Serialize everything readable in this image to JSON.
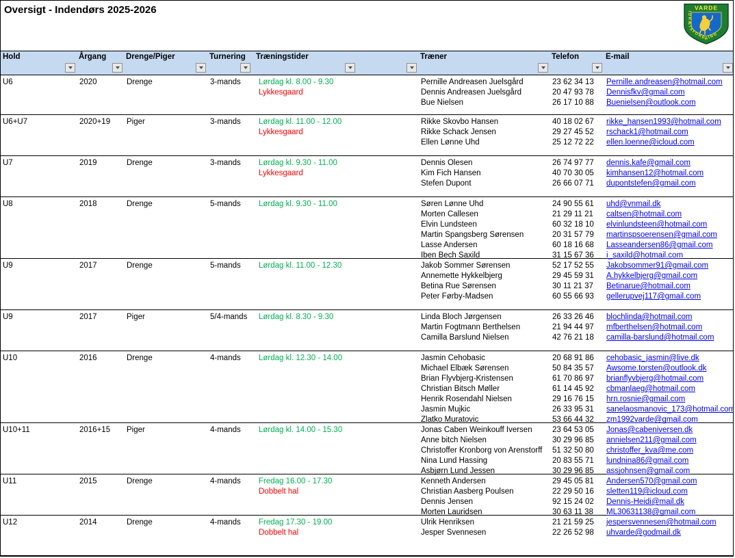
{
  "title": "Oversigt - Indendørs 2025-2026",
  "logo": {
    "top_text": "VARDE",
    "ring_text": "IDRÆTSFORENING"
  },
  "colors": {
    "header_bg": "#c5d9f1",
    "time_green": "#00b050",
    "venue_red": "#ff0000",
    "link_blue": "#0000ee"
  },
  "columns": [
    "Hold",
    "Årgang",
    "Drenge/Piger",
    "Turnering",
    "Træningstider",
    "",
    "Træner",
    "Telefon",
    "E-mail"
  ],
  "rows": [
    {
      "hold": "U6",
      "argang": "2020",
      "gender": "Drenge",
      "turnering": "3-mands",
      "time": "Lørdag kl. 8.00 - 9.30",
      "venue": "Lykkesgaard",
      "trainers": [
        {
          "name": "Pernille Andreasen Juelsgård",
          "phone": "23 62 34 13",
          "email": "Pernille.andreasen@hotmail.com"
        },
        {
          "name": "Dennis Andreasen Juelsgård",
          "phone": "20 47 93 78",
          "email": "Dennisfkv@gmail.com"
        },
        {
          "name": "Bue Nielsen",
          "phone": "26 17 10 88",
          "email": "Buenielsen@outlook.com"
        }
      ]
    },
    {
      "hold": "U6+U7",
      "argang": "2020+19",
      "gender": "Piger",
      "turnering": "3-mands",
      "time": "Lørdag kl. 11.00 - 12.00",
      "venue": "Lykkesgaard",
      "trainers": [
        {
          "name": "Rikke Skovbo Hansen",
          "phone": "40 18 02 67",
          "email": "rikke_hansen1993@hotmail.com"
        },
        {
          "name": "Rikke Schack Jensen",
          "phone": "29 27 45 52",
          "email": "rschack1@hotmail.com"
        },
        {
          "name": "Ellen Lønne Uhd",
          "phone": "25 12 72 22",
          "email": "ellen.loenne@icloud.com"
        }
      ]
    },
    {
      "hold": "U7",
      "argang": "2019",
      "gender": "Drenge",
      "turnering": "3-mands",
      "time": "Lørdag kl. 9.30 - 11.00",
      "venue": "Lykkesgaard",
      "trainers": [
        {
          "name": "Dennis Olesen",
          "phone": "26 74 97 77",
          "email": "dennis.kafe@gmail.com"
        },
        {
          "name": "Kim Fich Hansen",
          "phone": "40 70 30 05",
          "email": "kimhansen12@hotmail.com"
        },
        {
          "name": "Stefen Dupont",
          "phone": "26 66 07 71",
          "email": "dupontstefen@gmail.com"
        }
      ]
    },
    {
      "hold": "U8",
      "argang": "2018",
      "gender": "Drenge",
      "turnering": "5-mands",
      "time": "Lørdag kl. 9.30 - 11.00",
      "venue": "",
      "trainers": [
        {
          "name": "Søren Lønne Uhd",
          "phone": "24 90 55 61",
          "email": "uhd@vnmail.dk"
        },
        {
          "name": "Morten Callesen",
          "phone": "21 29 11 21",
          "email": "caltsen@hotmail.com"
        },
        {
          "name": "Elvin Lundsteen",
          "phone": "60 32 18 10",
          "email": "elvinlundsteen@hotmail.com"
        },
        {
          "name": "Martin Spangsberg Sørensen",
          "phone": "20 31 57 79",
          "email": "martinspsoerensen@gmail.com"
        },
        {
          "name": "Lasse Andersen",
          "phone": "60 18 16 68",
          "email": "Lasseandersen86@gmail.com"
        },
        {
          "name": "Iben Bech Saxild",
          "phone": "31 15 67 36",
          "email": "i_saxild@hotmail.com"
        }
      ]
    },
    {
      "hold": "U9",
      "argang": "2017",
      "gender": "Drenge",
      "turnering": "5-mands",
      "time": "Lørdag kl. 11.00 - 12.30",
      "venue": "",
      "trainers": [
        {
          "name": "Jakob Sommer Sørensen",
          "phone": "52 17 52 55",
          "email": "Jakobsommer91@gmail.com"
        },
        {
          "name": "Annemette Hykkelbjerg",
          "phone": "29 45 59 31",
          "email": "A.hykkelbjerg@gmail.com"
        },
        {
          "name": "Betina Rue Sørensen",
          "phone": "30 11 21 37",
          "email": "Betinarue@hotmail.com"
        },
        {
          "name": "Peter Førby-Madsen",
          "phone": "60 55 66 93",
          "email": "gellerupvej117@gmail.com"
        }
      ]
    },
    {
      "hold": "U9",
      "argang": "2017",
      "gender": "Piger",
      "turnering": "5/4-mands",
      "time": "Lørdag kl. 8.30 - 9.30",
      "venue": "",
      "trainers": [
        {
          "name": "Linda Bloch Jørgensen",
          "phone": "26 33 26 46",
          "email": "blochlinda@hotmail.com"
        },
        {
          "name": "Martin Fogtmann Berthelsen",
          "phone": "21 94 44 97",
          "email": "mfberthelsen@hotmail.com"
        },
        {
          "name": "Camilla Barslund Nielsen",
          "phone": "42 76 21 18",
          "email": "camilla-barslund@hotmail.com"
        }
      ]
    },
    {
      "hold": "U10",
      "argang": "2016",
      "gender": "Drenge",
      "turnering": "4-mands",
      "time": "Lørdag kl. 12.30 - 14.00",
      "venue": "",
      "trainers": [
        {
          "name": "Jasmin Cehobasic",
          "phone": "20 68 91 86",
          "email": "cehobasic_jasmin@live.dk"
        },
        {
          "name": "Michael Elbæk Sørensen",
          "phone": "50 84 35 57",
          "email": "Awsome.torsten@outlook.dk"
        },
        {
          "name": "Brian Flyvbjerg-Kristensen",
          "phone": "61 70 86 97",
          "email": "brianflyvbjerg@hotmail.com"
        },
        {
          "name": "Christian Bitsch Møller",
          "phone": "61 14 45 92",
          "email": "cbmanlaeg@hotmail.com"
        },
        {
          "name": "Henrik Rosendahl Nielsen",
          "phone": "29 16 76 15",
          "email": "hrn.rosnie@gmail.com"
        },
        {
          "name": "Jasmin Mujkic",
          "phone": "26 33 95 31",
          "email": "sanelaosmanovic_173@hotmail.com"
        },
        {
          "name": "Zlatko Muratovic",
          "phone": "53 66 44 32",
          "email": "zm1992varde@gmail.com"
        }
      ]
    },
    {
      "hold": "U10+11",
      "argang": "2016+15",
      "gender": "Piger",
      "turnering": "4-mands",
      "time": "Lørdag kl. 14.00 - 15.30",
      "venue": "",
      "trainers": [
        {
          "name": "Jonas Caben Weinkouff Iversen",
          "phone": "23 64 53 05",
          "email": "Jonas@cabeniversen.dk"
        },
        {
          "name": "Anne bitch Nielsen",
          "phone": "30 29 96 85",
          "email": "annielsen211@gmail.com"
        },
        {
          "name": "Christoffer Kronborg von Arenstorff",
          "phone": "51 32 50 80",
          "email": "christoffer_kva@me.com"
        },
        {
          "name": "Nina Lund Hassing",
          "phone": "20 83 55 71",
          "email": "lundnina86@gmail.com"
        },
        {
          "name": "Asbjørn Lund Jessen",
          "phone": "30 29 96 85",
          "email": "assjohnsen@gmail.com"
        }
      ]
    },
    {
      "hold": "U11",
      "argang": "2015",
      "gender": "Drenge",
      "turnering": "4-mands",
      "time": "Fredag 16.00 - 17.30",
      "venue": "Dobbelt hal",
      "trainers": [
        {
          "name": "Kenneth Andersen",
          "phone": "29 45 05 81",
          "email": "Andersen570@gmail.com"
        },
        {
          "name": "Christian Aasberg Poulsen",
          "phone": "22 29 50 16",
          "email": "sletten119@icloud.com"
        },
        {
          "name": "Dennis Jensen",
          "phone": "92 15 24 02",
          "email": "Dennis-Heidi@mail.dk"
        },
        {
          "name": "Morten Lauridsen",
          "phone": "30 63 11 38",
          "email": "ML30631138@gmail.com"
        }
      ]
    },
    {
      "hold": "U12",
      "argang": "2014",
      "gender": "Drenge",
      "turnering": "4-mands",
      "time": "Fredag 17.30 - 19.00",
      "venue": "Dobbelt hal",
      "trainers": [
        {
          "name": "Ulrik Henriksen",
          "phone": "21 21 59 25",
          "email": "jespersvennesen@hotmail.com"
        },
        {
          "name": "Jesper Svennesen",
          "phone": "22 26 52 98",
          "email": "uhvarde@godmail.dk"
        }
      ]
    }
  ]
}
